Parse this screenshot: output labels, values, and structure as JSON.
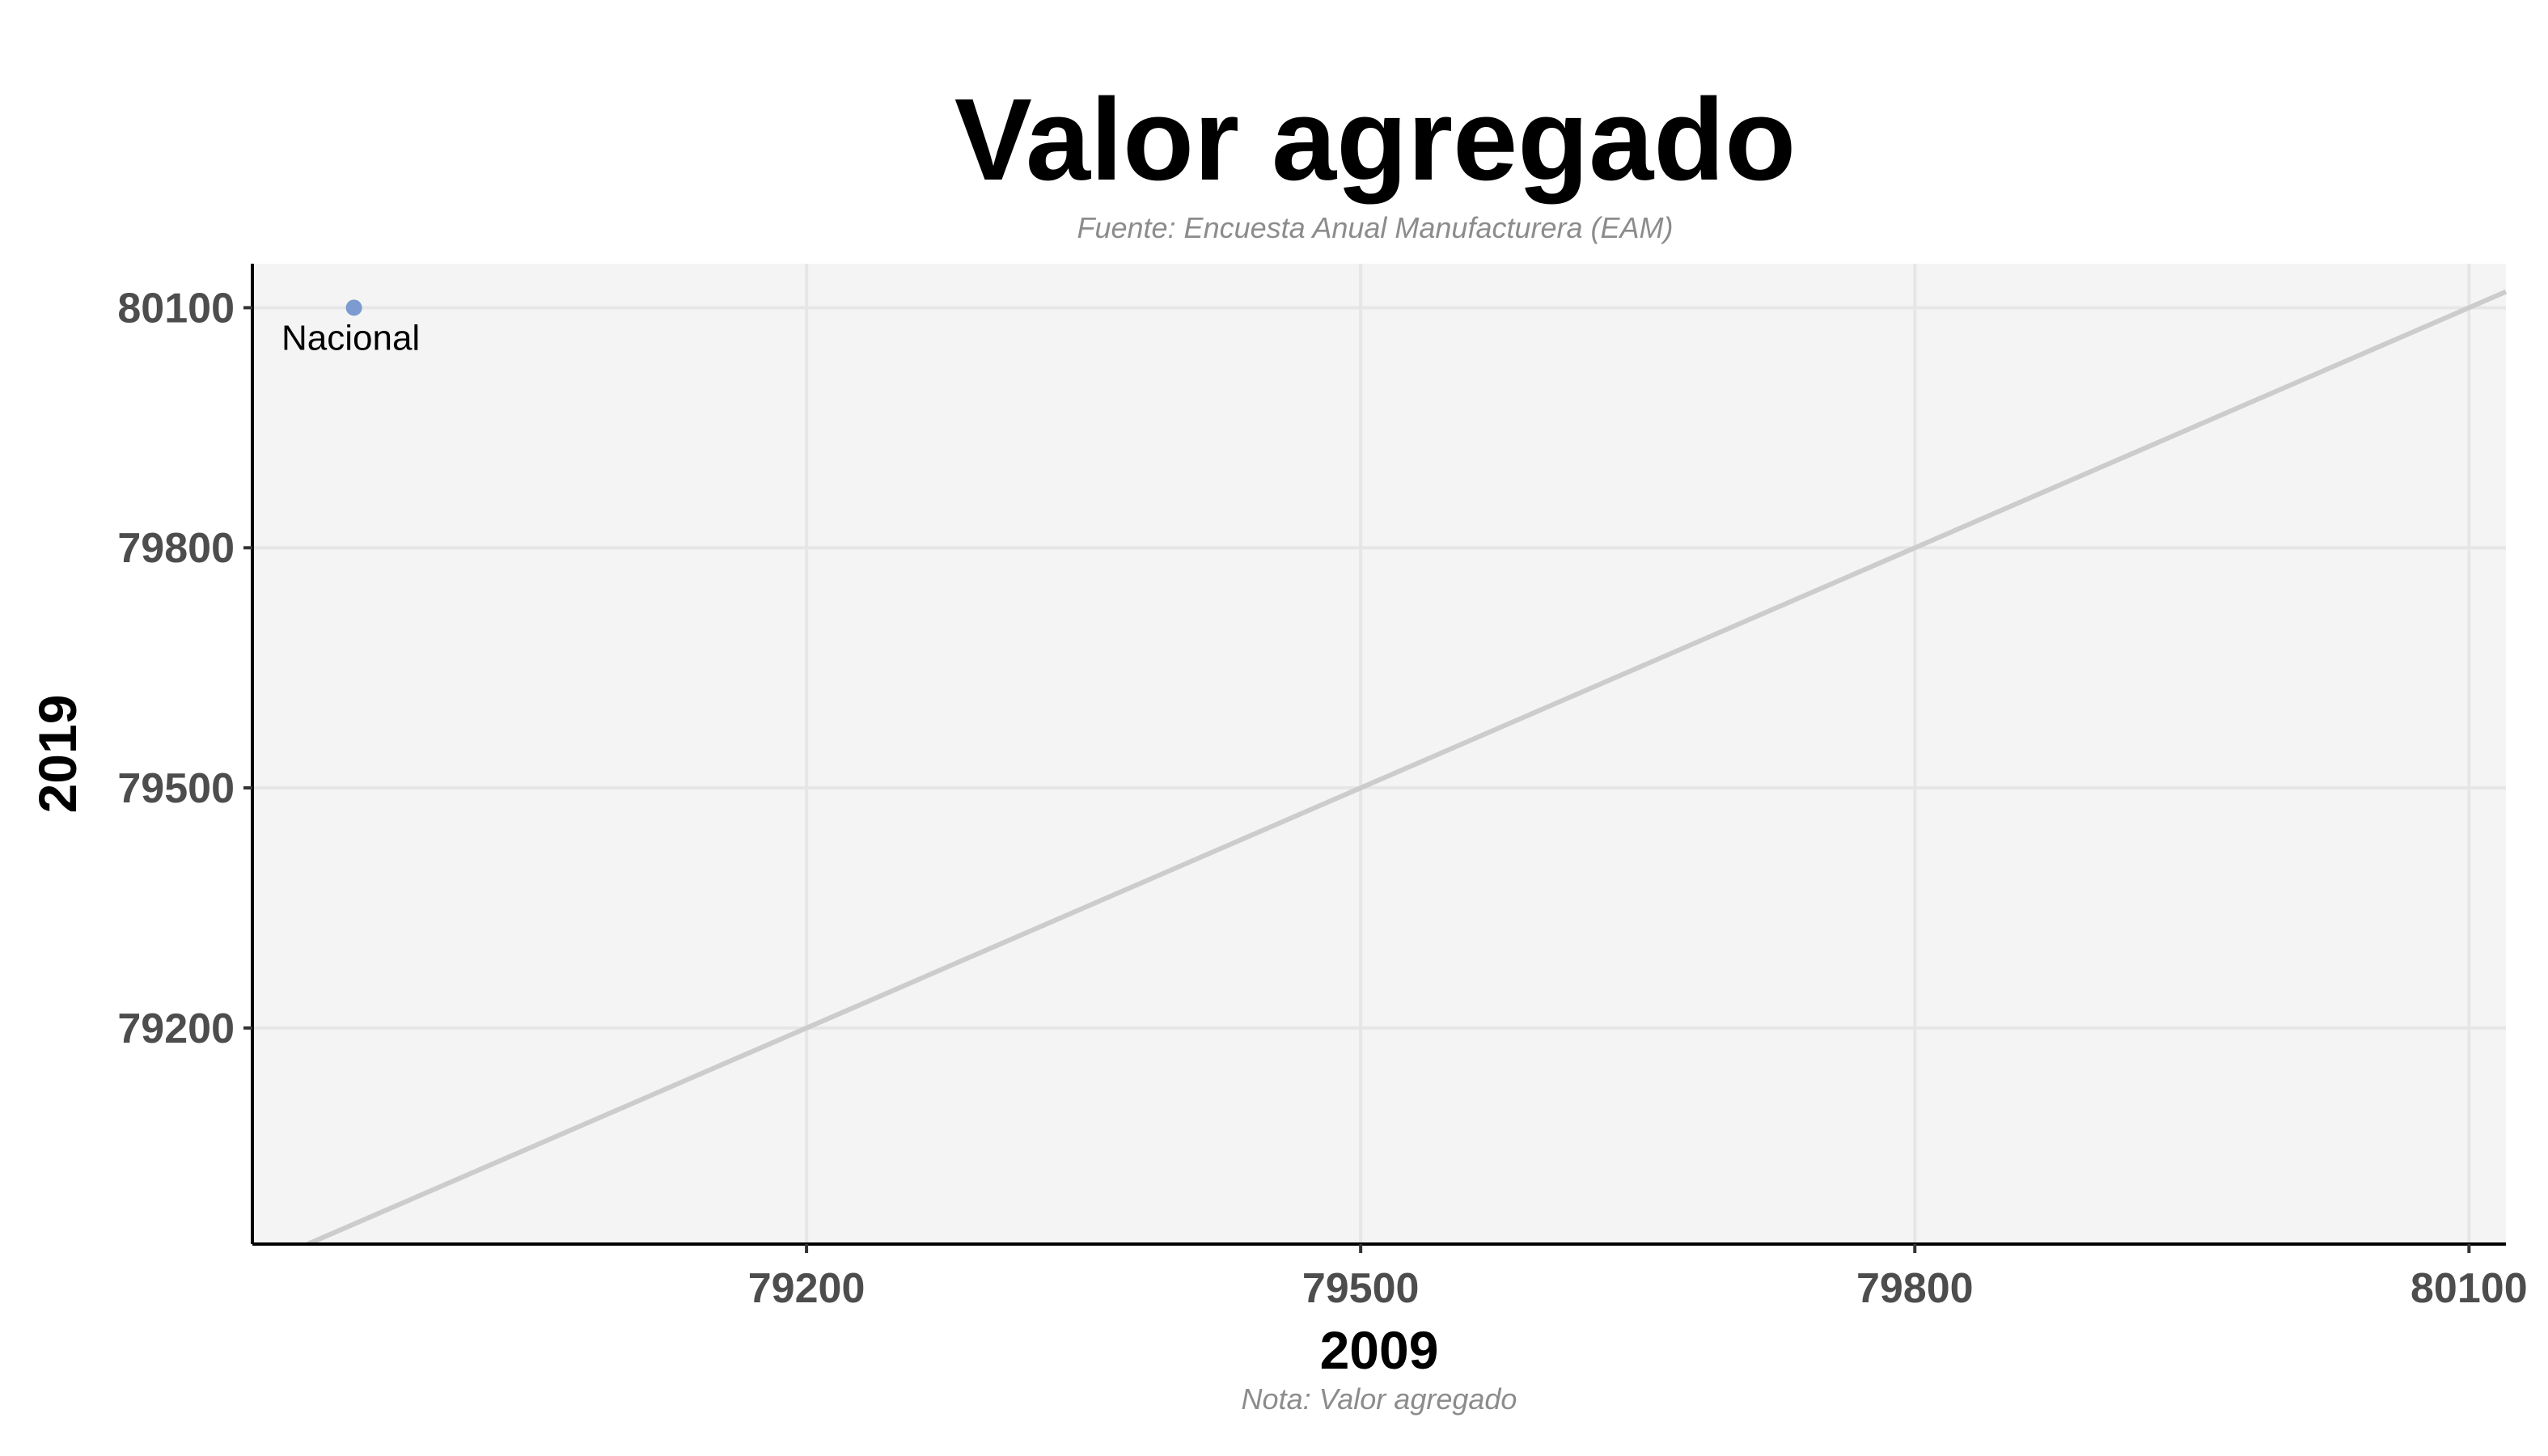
{
  "chart_data": {
    "type": "scatter",
    "title": "Valor agregado",
    "subtitle": "Fuente: Encuesta Anual Manufacturera (EAM)",
    "caption": "Nota: Valor agregado",
    "xlabel": "2009",
    "ylabel": "2019",
    "xlim": [
      78900,
      80120
    ],
    "ylim": [
      78930,
      80155
    ],
    "xticks": [
      79200,
      79500,
      79800,
      80100
    ],
    "yticks": [
      79200,
      79500,
      79800,
      80100
    ],
    "grid": true,
    "reference_line": "y = x",
    "points": [
      {
        "label": "Nacional",
        "x": 78955,
        "y": 80100
      }
    ],
    "colors": {
      "point": "#7b9bd1",
      "panel_background": "#f4f4f4",
      "grid": "#e6e6e6",
      "reference_line": "#cccccc"
    }
  }
}
